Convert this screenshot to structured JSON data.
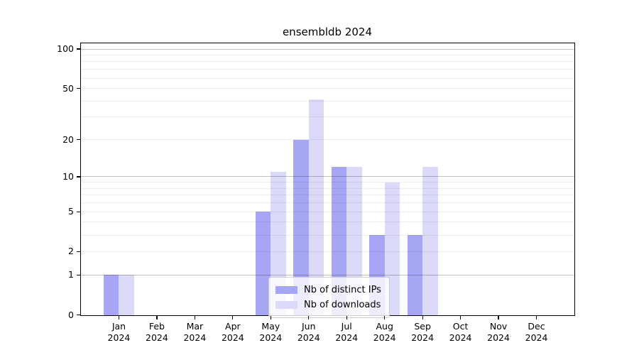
{
  "chart_data": {
    "type": "bar",
    "title": "ensembldb 2024",
    "categories": [
      "Jan",
      "Feb",
      "Mar",
      "Apr",
      "May",
      "Jun",
      "Jul",
      "Aug",
      "Sep",
      "Oct",
      "Nov",
      "Dec"
    ],
    "category_year": "2024",
    "series": [
      {
        "name": "Nb of distinct IPs",
        "color": "#a6a6f4",
        "values": [
          1,
          0,
          0,
          0,
          5,
          20,
          12,
          3,
          3,
          0,
          0,
          0
        ]
      },
      {
        "name": "Nb of downloads",
        "color": "#dbdbf9",
        "values": [
          1,
          0,
          0,
          0,
          11,
          41,
          12,
          9,
          12,
          0,
          0,
          0
        ]
      }
    ],
    "xlabel": "",
    "ylabel": "",
    "yscale": "log1p",
    "ylim": [
      0,
      100
    ],
    "ytick_values": [
      0,
      1,
      2,
      5,
      10,
      20,
      50,
      100
    ],
    "grid": {
      "major_values": [
        1,
        10,
        100
      ],
      "minor_values": [
        2,
        3,
        4,
        5,
        6,
        7,
        8,
        9,
        20,
        30,
        40,
        50,
        60,
        70,
        80,
        90
      ]
    },
    "legend_position": "lower center",
    "axis_color": "#000000",
    "major_grid_color": "rgba(0,0,0,0.24)",
    "minor_grid_color": "rgba(0,0,0,0.07)"
  }
}
